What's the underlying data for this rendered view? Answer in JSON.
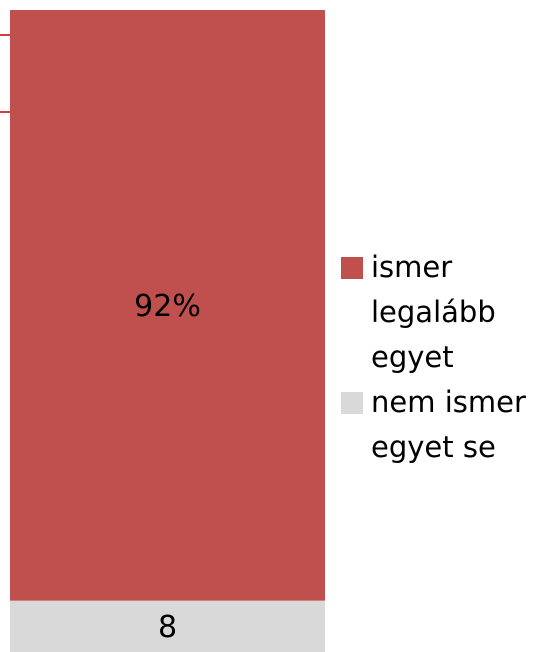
{
  "chart_data": {
    "type": "stacked-bar",
    "categories": [
      null
    ],
    "series": [
      {
        "name": "ismer legalább egyet",
        "color": "#c0504d",
        "values": [
          92
        ],
        "value_labels": [
          "92%"
        ]
      },
      {
        "name": "nem ismer egyet se",
        "color": "#d9d9d9",
        "values": [
          8
        ]
      }
    ],
    "ylim": [
      0,
      100
    ],
    "legend": "right"
  }
}
